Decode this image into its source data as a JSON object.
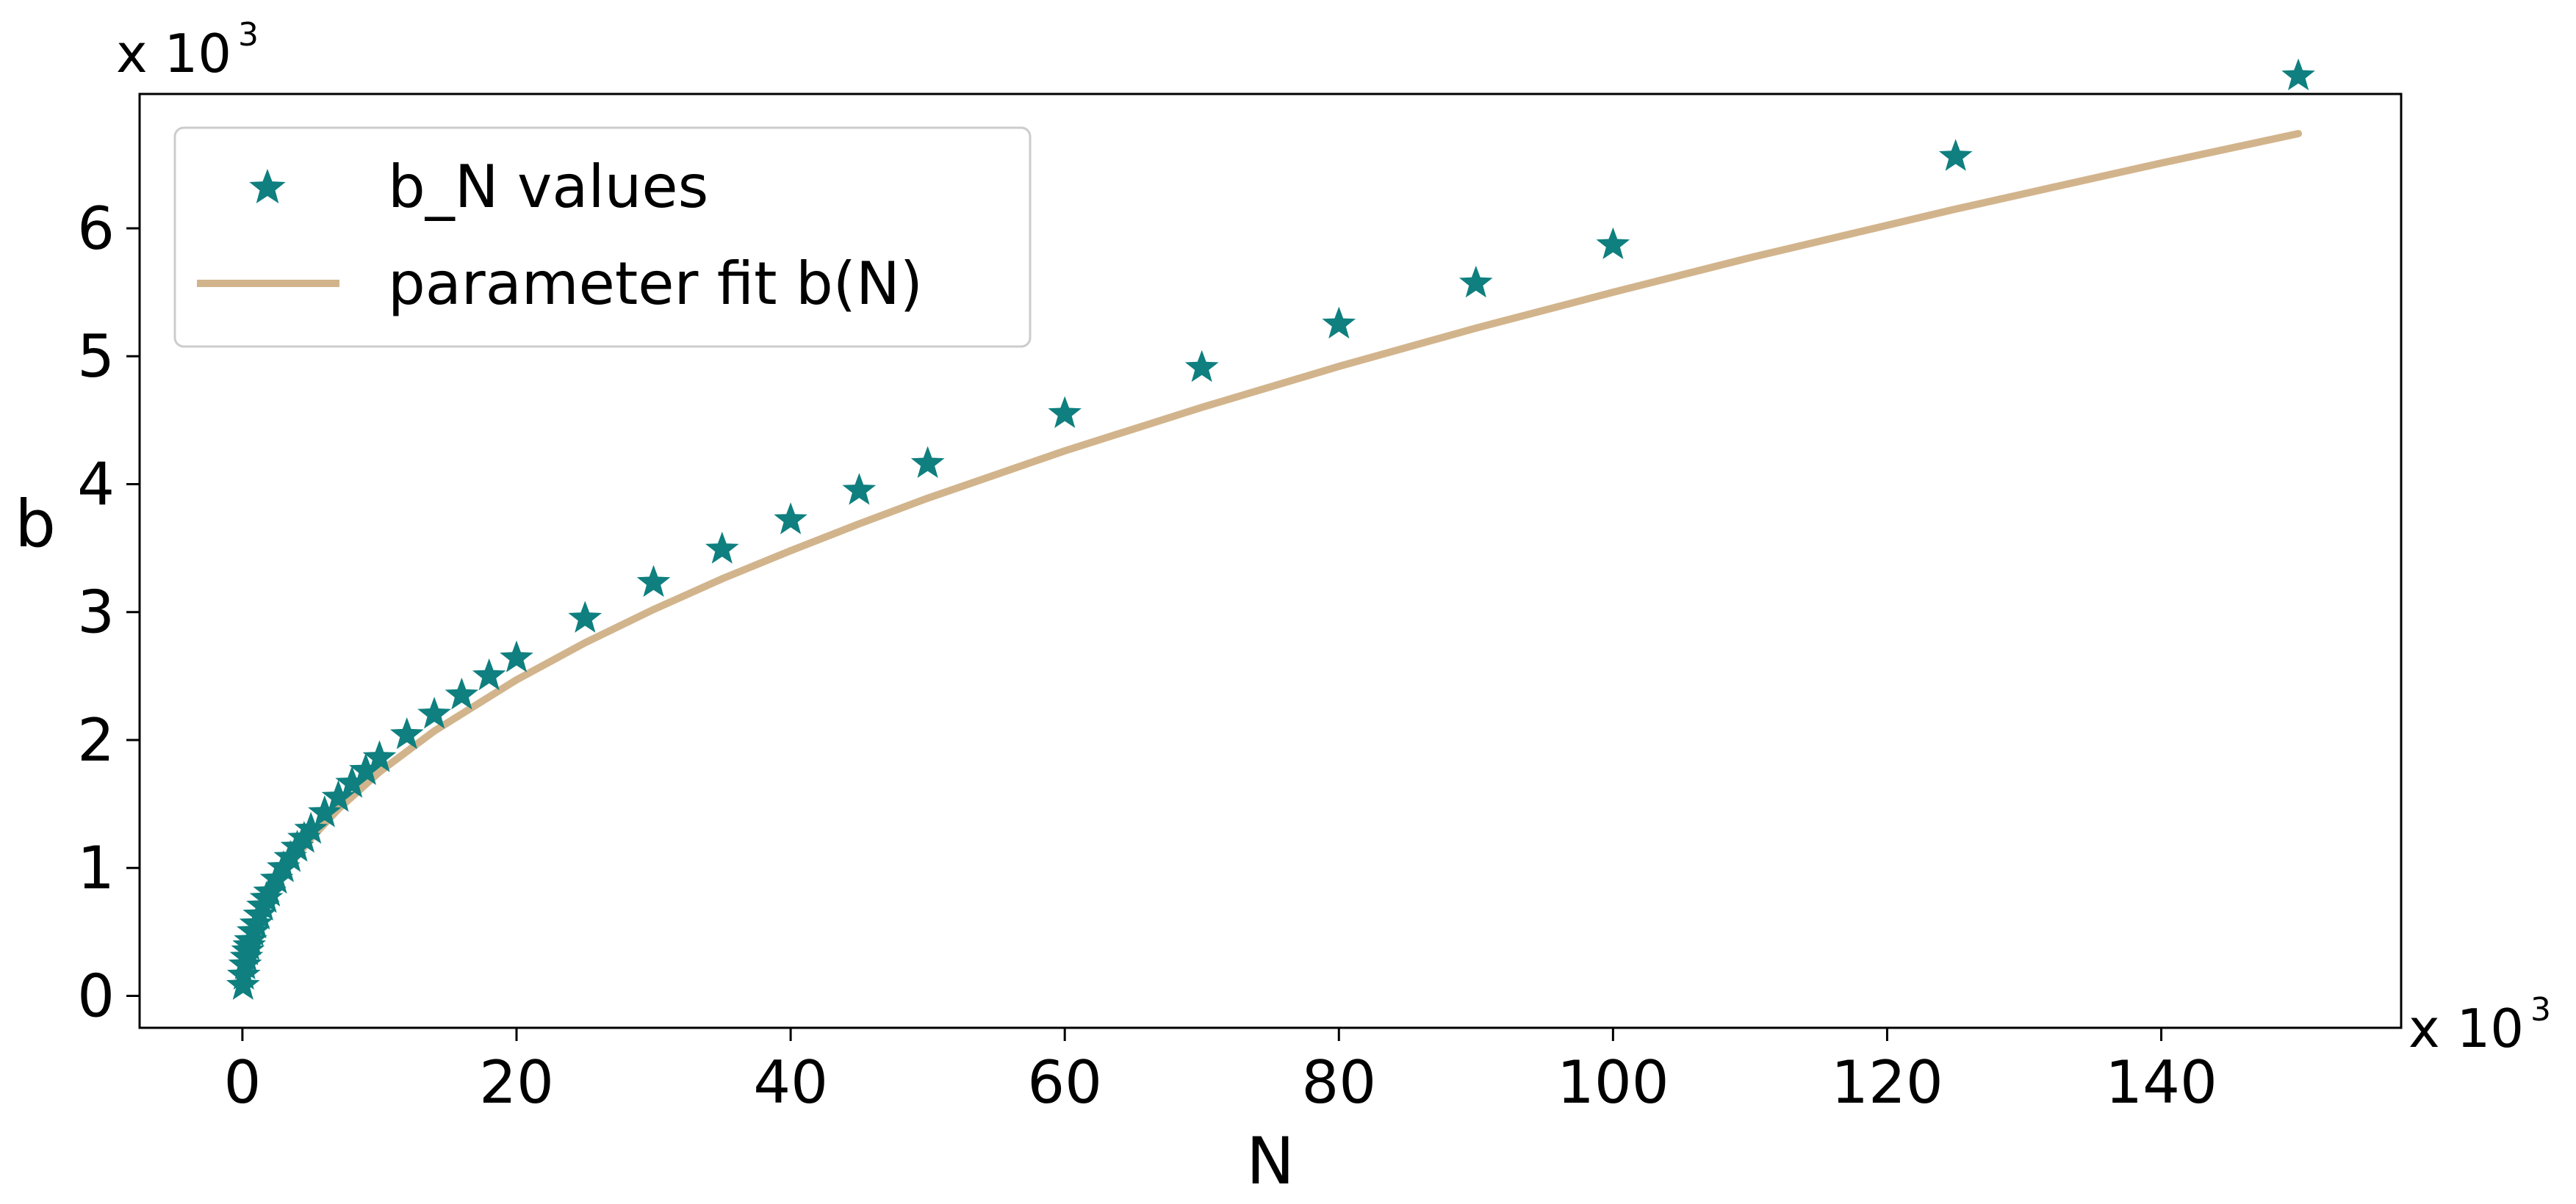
{
  "chart_data": {
    "type": "scatter",
    "title": "",
    "xlabel": "N",
    "ylabel": "b",
    "x_scale_note": "x 10",
    "x_scale_exp": "3",
    "y_scale_note": "x 10",
    "y_scale_exp": "3",
    "xlim": [
      -7.5,
      157.5
    ],
    "ylim": [
      -0.25,
      7.05
    ],
    "x_ticks": [
      0,
      20,
      40,
      60,
      80,
      100,
      120,
      140
    ],
    "y_ticks": [
      0,
      1,
      2,
      3,
      4,
      5,
      6
    ],
    "x_tick_labels": [
      "0",
      "20",
      "40",
      "60",
      "80",
      "100",
      "120",
      "140"
    ],
    "y_tick_labels": [
      "0",
      "1",
      "2",
      "3",
      "4",
      "5",
      "6"
    ],
    "grid": false,
    "legend": {
      "placement": "top-left",
      "entries": [
        "b_N values",
        "parameter fit b(N)"
      ]
    },
    "colors": {
      "markers": "#0f7f7f",
      "fit": "#d2b48c"
    },
    "series": [
      {
        "name": "b_N values",
        "kind": "scatter",
        "marker": "star",
        "x": [
          0.05,
          0.1,
          0.2,
          0.3,
          0.4,
          0.5,
          0.6,
          0.8,
          1.0,
          1.25,
          1.5,
          1.75,
          2.0,
          2.5,
          3.0,
          3.5,
          4.0,
          4.5,
          5.0,
          6.0,
          7.0,
          8.0,
          9.0,
          10.0,
          12.0,
          14.0,
          16.0,
          18.0,
          20.0,
          25.0,
          30.0,
          35.0,
          40.0,
          45.0,
          50.0,
          60.0,
          70.0,
          80.0,
          90.0,
          100.0,
          125.0,
          150.0
        ],
        "y": [
          0.08,
          0.16,
          0.24,
          0.3,
          0.35,
          0.39,
          0.43,
          0.5,
          0.56,
          0.63,
          0.7,
          0.76,
          0.81,
          0.91,
          1.0,
          1.08,
          1.16,
          1.23,
          1.3,
          1.43,
          1.55,
          1.66,
          1.76,
          1.86,
          2.04,
          2.2,
          2.35,
          2.5,
          2.64,
          2.95,
          3.23,
          3.49,
          3.72,
          3.95,
          4.16,
          4.55,
          4.91,
          5.25,
          5.57,
          5.87,
          6.56,
          7.19
        ]
      },
      {
        "name": "parameter fit b(N)",
        "kind": "line",
        "x": [
          0.3,
          0.5,
          0.8,
          1.2,
          1.8,
          2.5,
          3.5,
          5,
          7,
          10,
          14,
          20,
          25,
          30,
          35,
          40,
          45,
          50,
          60,
          70,
          80,
          90,
          100,
          110,
          125,
          140,
          150
        ],
        "y": [
          0.3,
          0.39,
          0.49,
          0.6,
          0.74,
          0.87,
          1.03,
          1.23,
          1.46,
          1.75,
          2.07,
          2.47,
          2.76,
          3.02,
          3.26,
          3.48,
          3.69,
          3.89,
          4.26,
          4.6,
          4.92,
          5.22,
          5.5,
          5.77,
          6.15,
          6.51,
          6.74
        ]
      }
    ]
  }
}
